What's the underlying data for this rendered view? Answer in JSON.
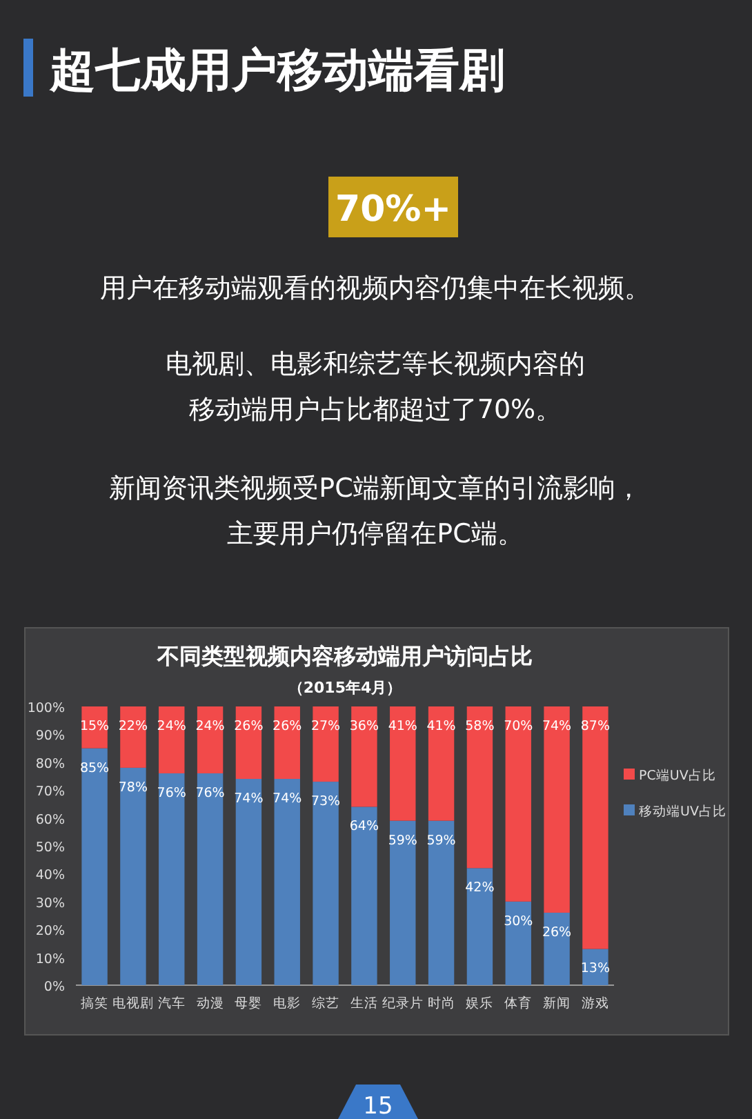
{
  "chart_data": {
    "type": "bar",
    "stacked": true,
    "title": "不同类型视频内容移动端用户访问占比",
    "subtitle": "（2015年4月）",
    "annotations": [
      "超七成用户移动端看剧",
      "70%+",
      "用户在移动端观看的视频内容仍集中在长视频。",
      "电视剧、电影和综艺等长视频内容的",
      "移动端用户占比都超过了70%。",
      "新闻资讯类视频受PC端新闻文章的引流影响，",
      "主要用户仍停留在PC端。",
      "15"
    ],
    "categories": [
      "搞笑",
      "电视剧",
      "汽车",
      "动漫",
      "母婴",
      "电影",
      "综艺",
      "生活",
      "纪录片",
      "时尚",
      "娱乐",
      "体育",
      "新闻",
      "游戏"
    ],
    "series": [
      {
        "name": "移动端UV占比",
        "color": "#4f81bd",
        "values": [
          85,
          78,
          76,
          76,
          74,
          74,
          73,
          64,
          59,
          59,
          42,
          30,
          26,
          13
        ],
        "value_labels": [
          "85%",
          "78%",
          "76%",
          "76%",
          "74%",
          "74%",
          "73%",
          "64%",
          "59%",
          "59%",
          "42%",
          "30%",
          "26%",
          "13%"
        ]
      },
      {
        "name": "PC端UV占比",
        "color": "#f24a4a",
        "values": [
          15,
          22,
          24,
          24,
          26,
          26,
          27,
          36,
          41,
          41,
          58,
          70,
          74,
          87
        ],
        "value_labels": [
          "15%",
          "22%",
          "24%",
          "24%",
          "26%",
          "26%",
          "27%",
          "36%",
          "41%",
          "41%",
          "58%",
          "70%",
          "74%",
          "87%"
        ]
      }
    ],
    "ylim": [
      0,
      100
    ],
    "yticks": [
      {
        "value": 0,
        "label": "0%"
      },
      {
        "value": 10,
        "label": "10%"
      },
      {
        "value": 20,
        "label": "20%"
      },
      {
        "value": 30,
        "label": "30%"
      },
      {
        "value": 40,
        "label": "40%"
      },
      {
        "value": 50,
        "label": "50%"
      },
      {
        "value": 60,
        "label": "60%"
      },
      {
        "value": 70,
        "label": "70%"
      },
      {
        "value": 80,
        "label": "80%"
      },
      {
        "value": 90,
        "label": "90%"
      },
      {
        "value": 100,
        "label": "100%"
      }
    ],
    "legend": "right"
  }
}
